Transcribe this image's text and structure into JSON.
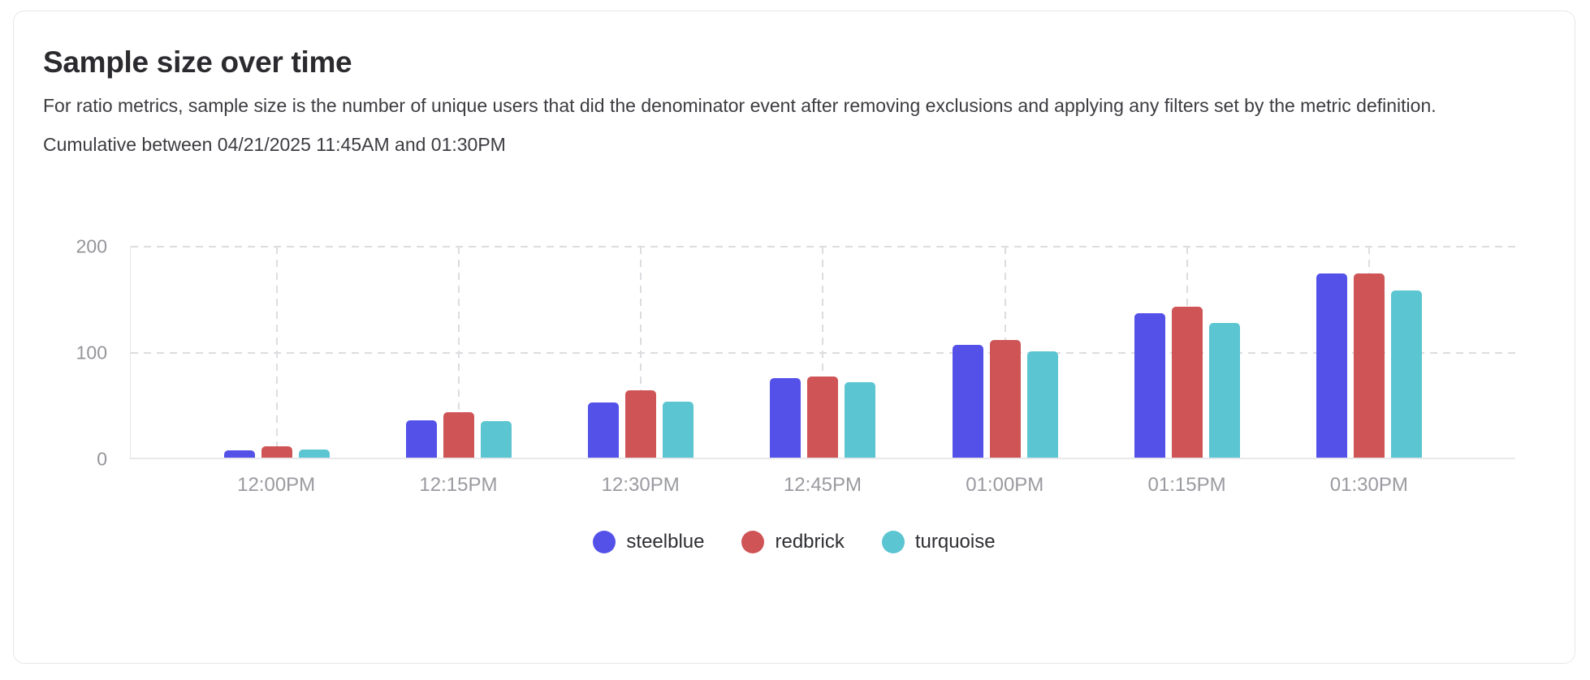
{
  "card": {
    "title": "Sample size over time",
    "description": "For ratio metrics, sample size is the number of unique users that did the denominator event after removing exclusions and applying any filters set by the metric definition.",
    "range_note": "Cumulative between 04/21/2025 11:45AM and 01:30PM"
  },
  "colors": {
    "steelblue": "#5451E9",
    "redbrick": "#CF5456",
    "turquoise": "#5BC5D1",
    "axis_text": "#95959A",
    "grid_line": "#DDDDE1",
    "card_border": "#E7E7EB"
  },
  "chart_data": {
    "type": "bar",
    "title": "Sample size over time",
    "categories": [
      "12:00PM",
      "12:15PM",
      "12:30PM",
      "12:45PM",
      "01:00PM",
      "01:15PM",
      "01:30PM"
    ],
    "series": [
      {
        "name": "steelblue",
        "color": "#5451E9",
        "values": [
          7,
          35,
          52,
          75,
          106,
          136,
          173
        ]
      },
      {
        "name": "redbrick",
        "color": "#CF5456",
        "values": [
          11,
          43,
          63,
          76,
          111,
          142,
          173
        ]
      },
      {
        "name": "turquoise",
        "color": "#5BC5D1",
        "values": [
          8,
          34,
          53,
          71,
          100,
          127,
          157
        ]
      }
    ],
    "xlabel": "",
    "ylabel": "",
    "ylim": [
      0,
      200
    ],
    "yticks": [
      0,
      100,
      200
    ],
    "grid": "dashed",
    "legend_position": "bottom"
  }
}
